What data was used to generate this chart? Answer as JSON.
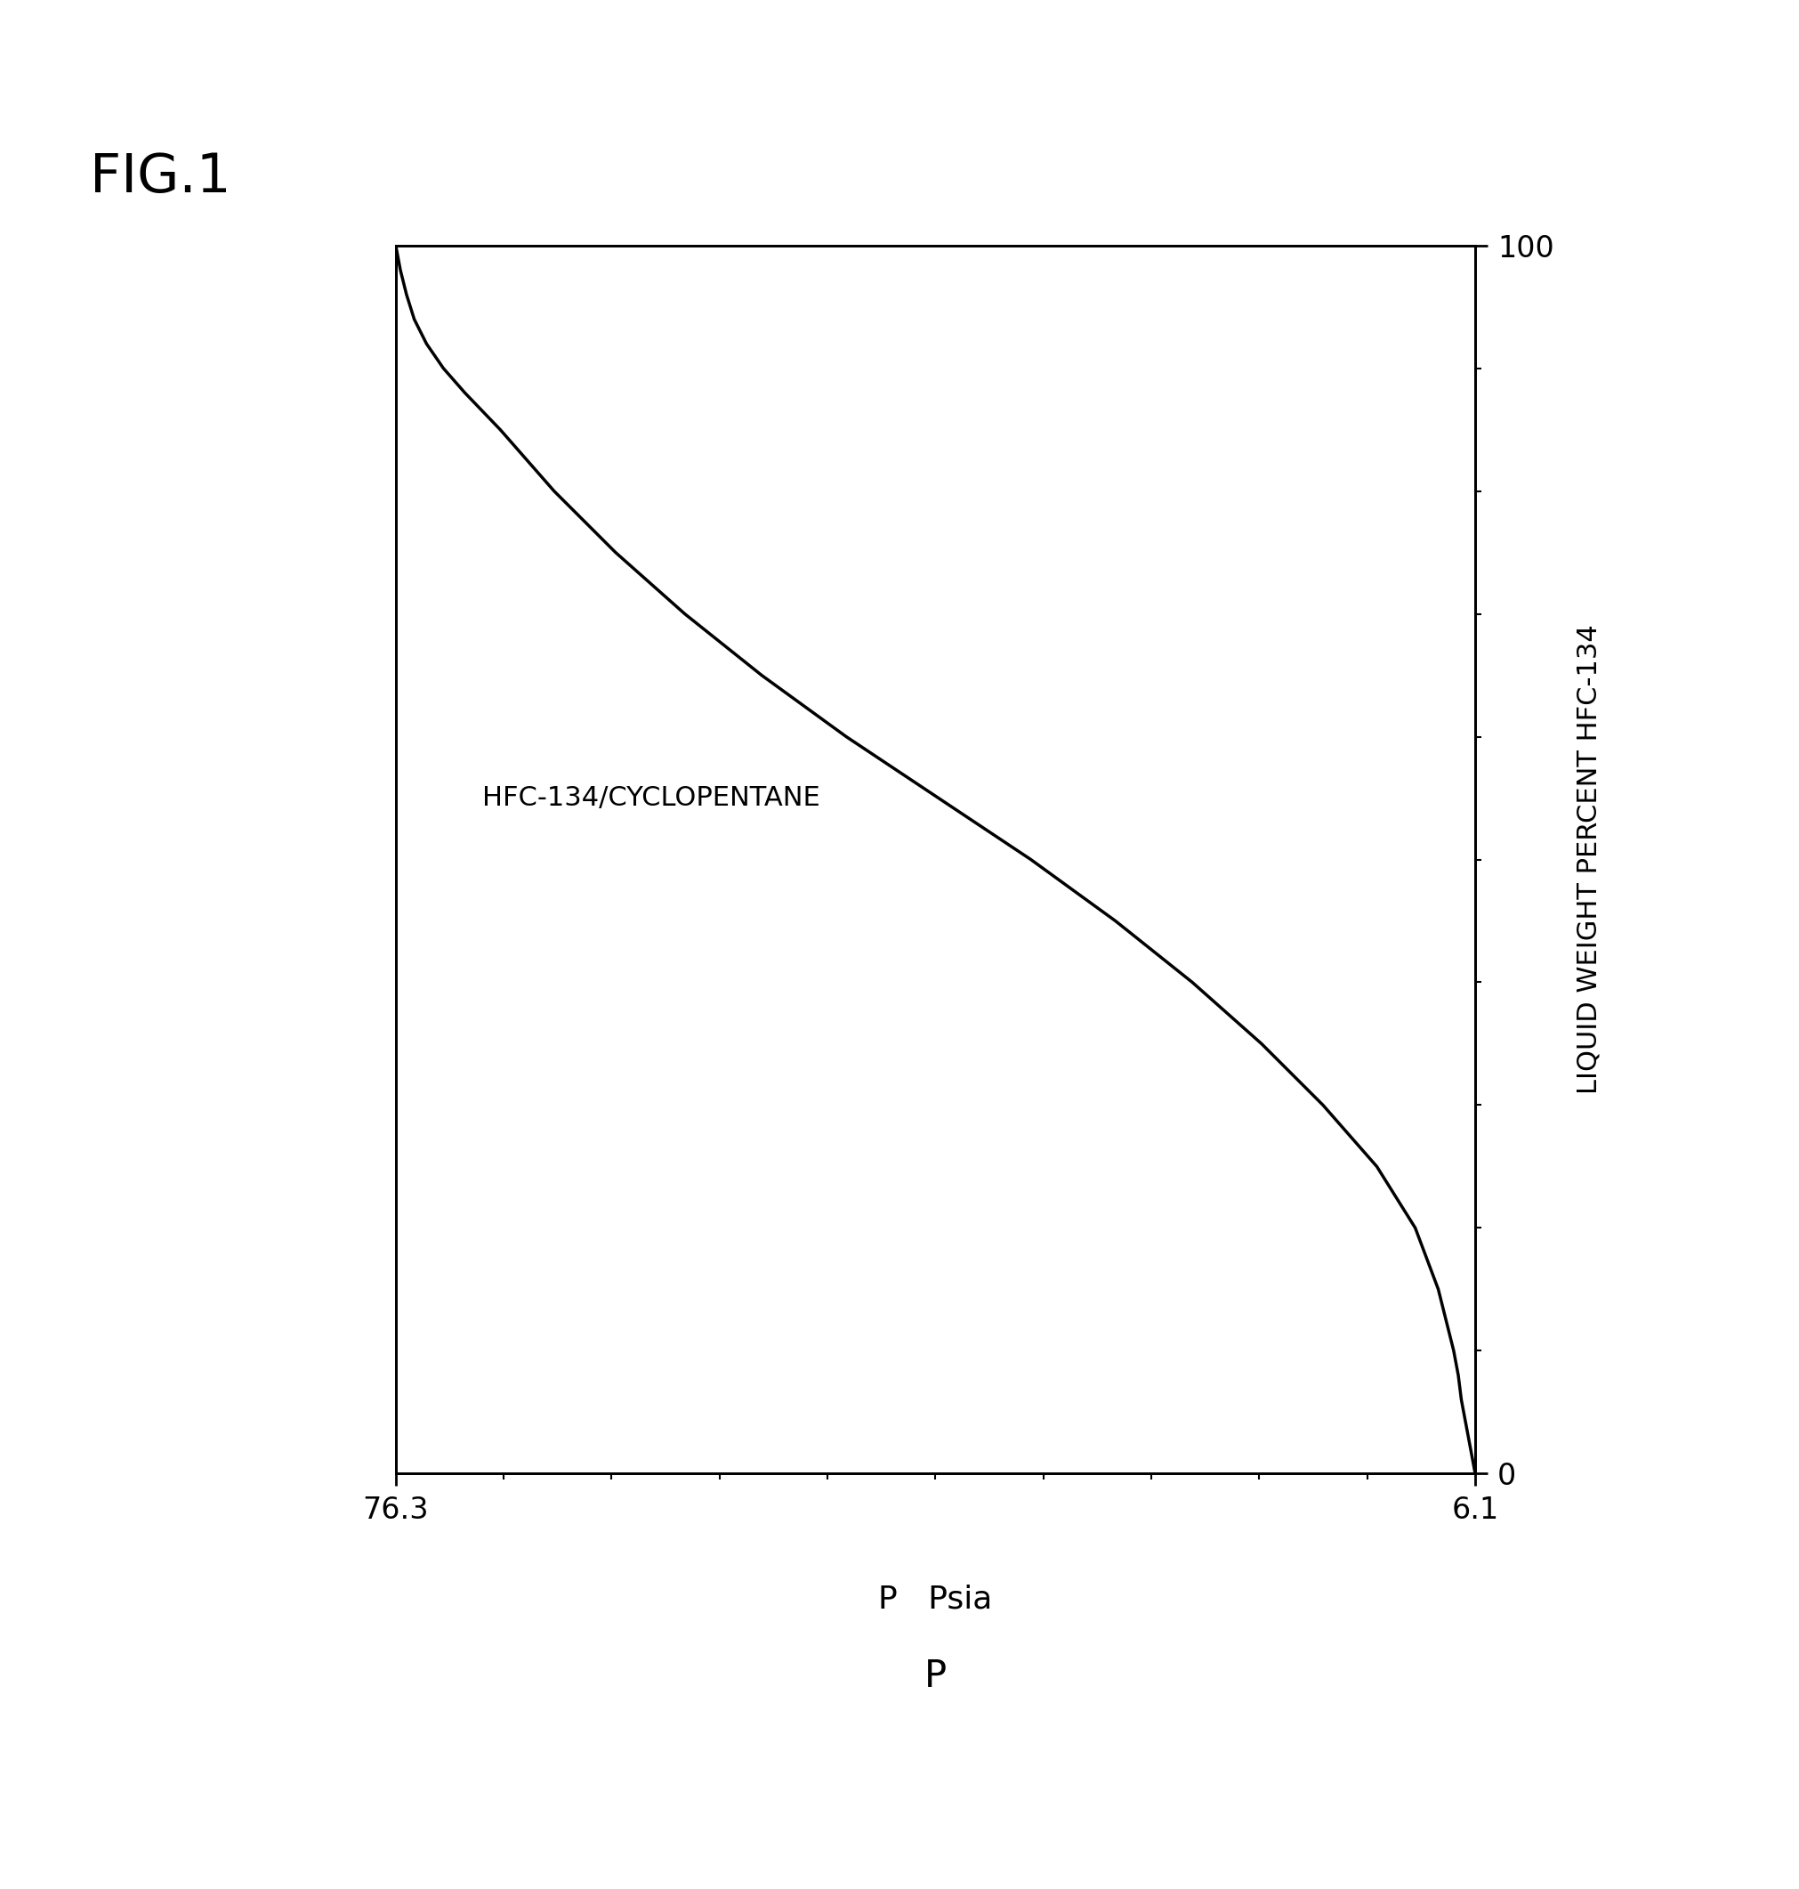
{
  "title": "FIG.1",
  "xlabel_bottom": "Psia",
  "xlabel_bottom2": "P",
  "ylabel_right": "LIQUID WEIGHT PERCENT HFC-134",
  "annotation": "HFC-134/CYCLOPENTANE",
  "p_min": 6.1,
  "p_max": 76.3,
  "pct_min": 0,
  "pct_max": 100,
  "line_color": "#000000",
  "background_color": "#ffffff",
  "curve_pct": [
    100,
    98,
    96,
    94,
    92,
    90,
    88,
    85,
    80,
    75,
    70,
    65,
    60,
    55,
    50,
    45,
    40,
    35,
    30,
    25,
    20,
    15,
    10,
    8,
    6,
    4,
    2,
    0
  ],
  "curve_p": [
    76.3,
    76.0,
    75.6,
    75.1,
    74.3,
    73.2,
    71.8,
    69.5,
    66.0,
    62.0,
    57.5,
    52.5,
    47.0,
    41.0,
    35.0,
    29.5,
    24.5,
    20.0,
    16.0,
    12.5,
    10.0,
    8.5,
    7.5,
    7.2,
    7.0,
    6.7,
    6.4,
    6.1
  ]
}
